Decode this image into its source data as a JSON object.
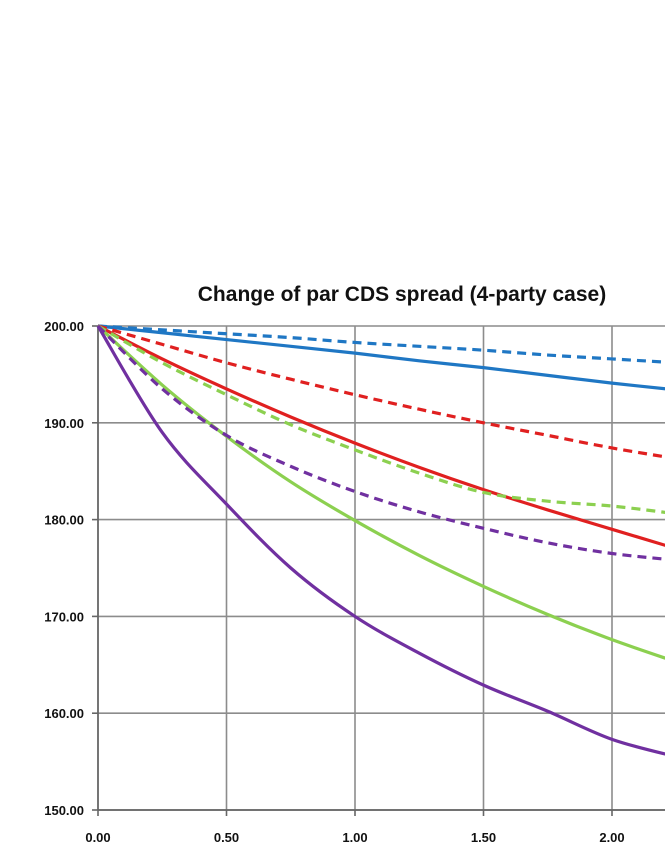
{
  "chart_data": {
    "type": "line",
    "title": "Change of par CDS spread (4-party case)",
    "xlabel": "",
    "ylabel": "",
    "x": [
      0.0,
      0.25,
      0.5,
      0.75,
      1.0,
      1.25,
      1.5,
      1.75,
      2.0,
      2.25
    ],
    "xlim": [
      0.0,
      2.25
    ],
    "ylim": [
      150.0,
      200.0
    ],
    "x_ticks": [
      "0.00",
      "0.50",
      "1.00",
      "1.50",
      "2.00"
    ],
    "y_ticks": [
      "200.00",
      "190.00",
      "180.00",
      "170.00",
      "160.00",
      "150.00"
    ],
    "grid": true,
    "series": [
      {
        "color": "#1f77c4",
        "style": "solid",
        "values": [
          200.0,
          199.3,
          198.6,
          197.9,
          197.2,
          196.4,
          195.7,
          194.9,
          194.1,
          193.4
        ]
      },
      {
        "color": "#1f77c4",
        "style": "dashed",
        "values": [
          200.0,
          199.6,
          199.2,
          198.8,
          198.3,
          197.9,
          197.5,
          197.0,
          196.6,
          196.2
        ]
      },
      {
        "color": "#e02020",
        "style": "solid",
        "values": [
          200.0,
          196.6,
          193.5,
          190.6,
          187.9,
          185.4,
          183.1,
          181.0,
          179.0,
          177.0
        ]
      },
      {
        "color": "#e02020",
        "style": "dashed",
        "values": [
          200.0,
          198.1,
          196.2,
          194.5,
          192.9,
          191.4,
          190.0,
          188.7,
          187.4,
          186.3
        ]
      },
      {
        "color": "#8cd050",
        "style": "solid",
        "values": [
          200.0,
          193.9,
          188.6,
          183.9,
          179.9,
          176.3,
          173.1,
          170.2,
          167.6,
          165.3
        ]
      },
      {
        "color": "#8cd050",
        "style": "dashed",
        "values": [
          200.0,
          196.2,
          192.9,
          189.8,
          187.2,
          184.8,
          182.8,
          181.9,
          181.4,
          180.6
        ]
      },
      {
        "color": "#7030a0",
        "style": "solid",
        "values": [
          200.0,
          189.0,
          181.6,
          175.0,
          170.0,
          166.2,
          162.9,
          160.2,
          157.3,
          155.5
        ]
      },
      {
        "color": "#7030a0",
        "style": "dashed",
        "values": [
          200.0,
          193.5,
          188.7,
          185.5,
          182.9,
          180.8,
          179.1,
          177.6,
          176.5,
          175.8
        ]
      }
    ]
  }
}
